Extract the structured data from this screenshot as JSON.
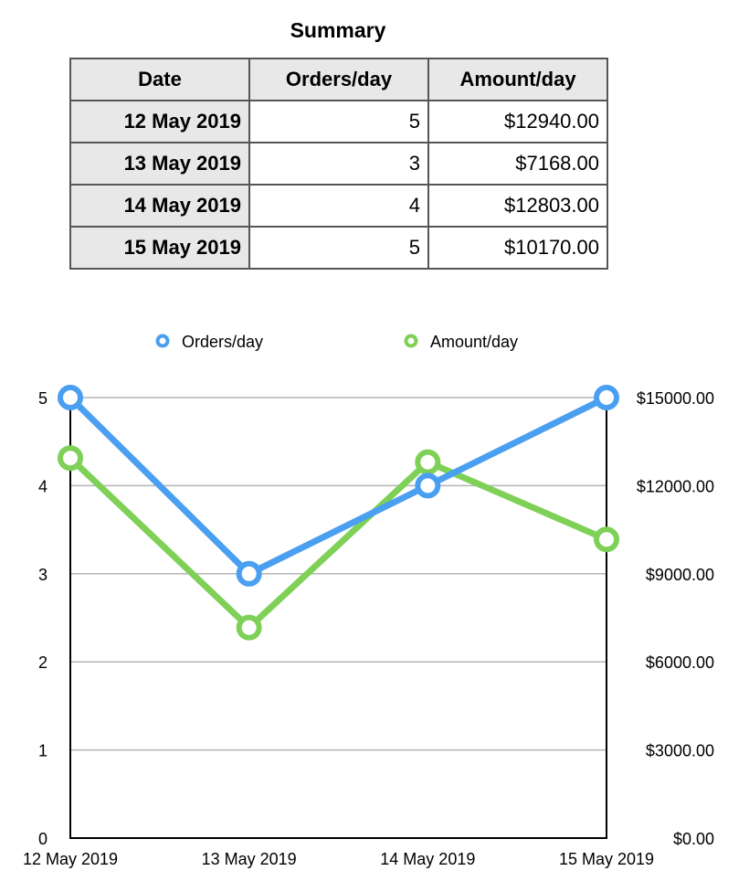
{
  "summary": {
    "title": "Summary",
    "headers": [
      "Date",
      "Orders/day",
      "Amount/day"
    ],
    "rows": [
      [
        "12 May 2019",
        "5",
        "$12940.00"
      ],
      [
        "13 May 2019",
        "3",
        "$7168.00"
      ],
      [
        "14 May 2019",
        "4",
        "$12803.00"
      ],
      [
        "15 May 2019",
        "5",
        "$10170.00"
      ]
    ]
  },
  "chart_data": {
    "type": "line",
    "categories": [
      "12 May 2019",
      "13 May 2019",
      "14 May 2019",
      "15 May 2019"
    ],
    "series": [
      {
        "name": "Orders/day",
        "values": [
          5,
          3,
          4,
          5
        ],
        "axis": "left",
        "color": "#4a9ff0"
      },
      {
        "name": "Amount/day",
        "values": [
          12940,
          7168,
          12803,
          10170
        ],
        "axis": "right",
        "color": "#7ed057"
      }
    ],
    "left_axis": {
      "ylim": [
        0,
        5
      ],
      "ticks": [
        "0",
        "1",
        "2",
        "3",
        "4",
        "5"
      ]
    },
    "right_axis": {
      "ylim": [
        0,
        15000
      ],
      "ticks": [
        "$0.00",
        "$3000.00",
        "$6000.00",
        "$9000.00",
        "$12000.00",
        "$15000.00"
      ]
    },
    "legend_position": "top",
    "grid": true,
    "grid_color": "#b4b4b4"
  }
}
